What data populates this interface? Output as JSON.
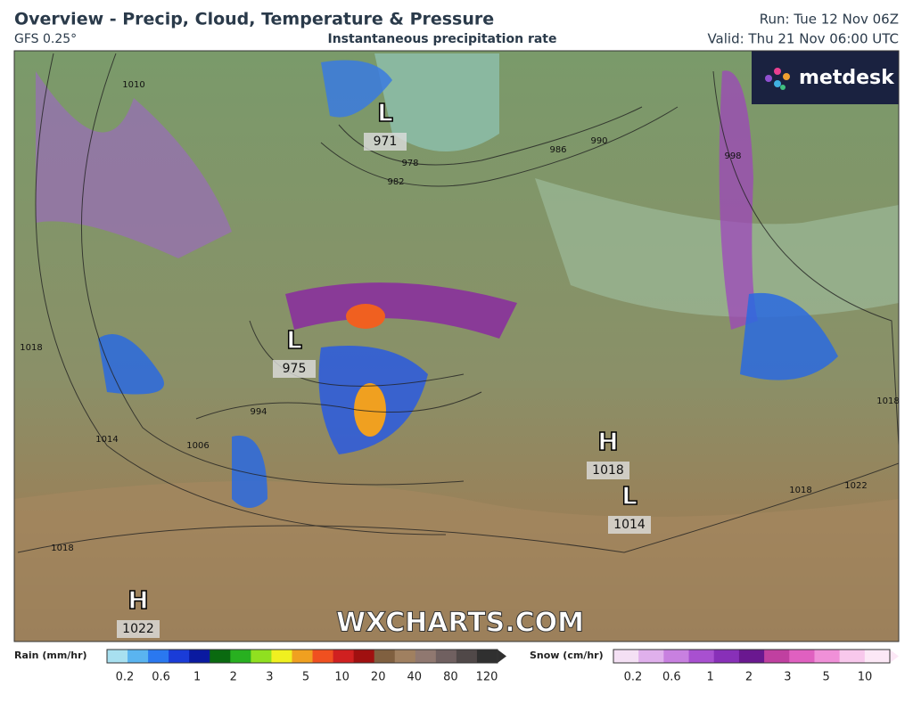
{
  "header": {
    "title": "Overview - Precip, Cloud, Temperature & Pressure",
    "model": "GFS 0.25°",
    "subtitle": "Instantaneous precipitation rate",
    "run": "Run: Tue 12 Nov 06Z",
    "valid": "Valid: Thu 21 Nov 06:00 UTC"
  },
  "map": {
    "logo": "metdesk",
    "watermark": "WXCHARTS.COM",
    "pressure_centers": [
      {
        "symbol": "L",
        "value": "971"
      },
      {
        "symbol": "L",
        "value": "975"
      },
      {
        "symbol": "H",
        "value": "1018"
      },
      {
        "symbol": "L",
        "value": "1014"
      },
      {
        "symbol": "H",
        "value": "1022"
      }
    ],
    "isobar_labels": [
      "1010",
      "978",
      "982",
      "986",
      "990",
      "998",
      "1018",
      "1014",
      "1006",
      "994",
      "1018",
      "1018",
      "1022",
      "1018"
    ]
  },
  "legend": {
    "rain": {
      "title": "Rain (mm/hr)",
      "ticks": [
        "0.2",
        "0.6",
        "1",
        "2",
        "3",
        "5",
        "10",
        "20",
        "40",
        "80",
        "120"
      ],
      "colors": [
        "#a8e0f0",
        "#5ab4f0",
        "#2a78f0",
        "#1a3cd8",
        "#0a1aa0",
        "#0a6a10",
        "#28b020",
        "#90e020",
        "#f0f020",
        "#f0a020",
        "#f05020",
        "#d02020",
        "#a01010",
        "#806040",
        "#a08060",
        "#907870",
        "#706060",
        "#504848",
        "#303030"
      ]
    },
    "snow": {
      "title": "Snow (cm/hr)",
      "ticks": [
        "0.2",
        "0.6",
        "1",
        "2",
        "3",
        "5",
        "10"
      ],
      "colors": [
        "#f4e0f4",
        "#e0b0ec",
        "#c880e0",
        "#a850d0",
        "#8830b8",
        "#6a1890",
        "#c040a0",
        "#e060c0",
        "#f090d8",
        "#f8c8ec",
        "#fce8f6"
      ]
    }
  }
}
